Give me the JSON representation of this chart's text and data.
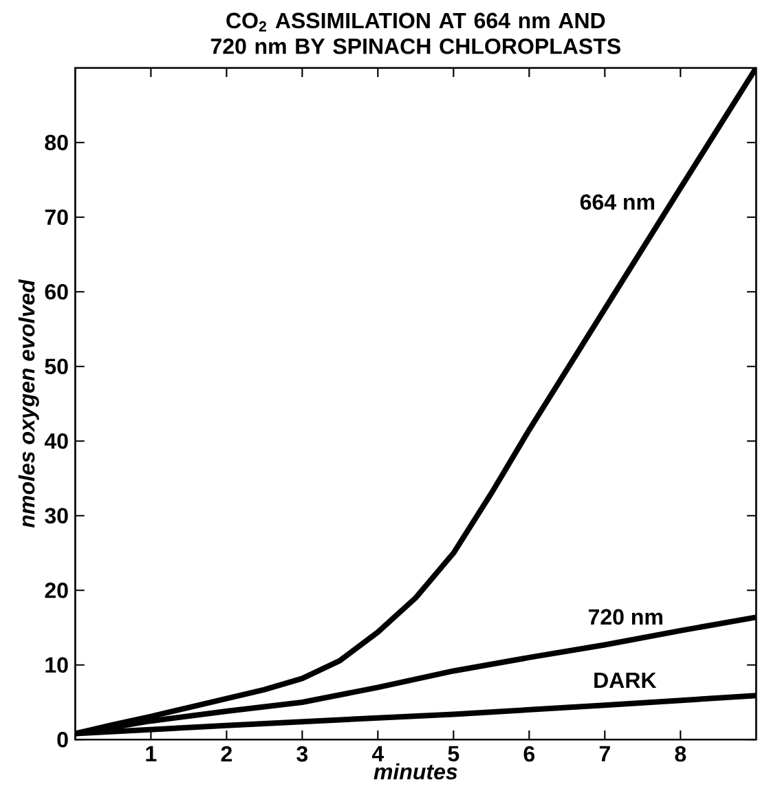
{
  "chart_data": {
    "type": "line",
    "title": "CO$_{2}$ ASSIMILATION AT 664 nm AND 720 nm BY SPINACH CHLOROPLASTS",
    "xlabel": "minutes",
    "ylabel": "nmoles oxygen evolved",
    "xlim": [
      0,
      9
    ],
    "ylim": [
      0,
      90
    ],
    "xticks": [
      1,
      2,
      3,
      4,
      5,
      6,
      7,
      8
    ],
    "yticks": [
      0,
      10,
      20,
      30,
      40,
      50,
      60,
      70,
      80
    ],
    "grid": false,
    "legend": false,
    "marker": "none",
    "line_style": "solid",
    "series": [
      {
        "name": "664 nm",
        "color": "#000000",
        "x": [
          0,
          0.5,
          1,
          1.5,
          2,
          2.5,
          3,
          3.5,
          4,
          4.5,
          5,
          5.5,
          6,
          7,
          8,
          9
        ],
        "values": [
          0.8,
          2,
          3.1,
          4.3,
          5.5,
          6.7,
          8.2,
          10.6,
          14.4,
          19,
          25,
          33,
          41.5,
          57.7,
          73.9,
          90
        ]
      },
      {
        "name": "720 nm",
        "color": "#000000",
        "x": [
          0,
          1,
          2,
          3,
          4,
          5,
          6,
          7,
          8,
          9
        ],
        "values": [
          0.8,
          2.5,
          3.8,
          5,
          7,
          9.2,
          11,
          12.7,
          14.6,
          16.4
        ]
      },
      {
        "name": "DARK",
        "color": "#000000",
        "x": [
          0,
          2,
          4,
          5,
          7,
          9
        ],
        "values": [
          0.8,
          1.9,
          2.9,
          3.4,
          4.6,
          5.9
        ]
      }
    ]
  }
}
